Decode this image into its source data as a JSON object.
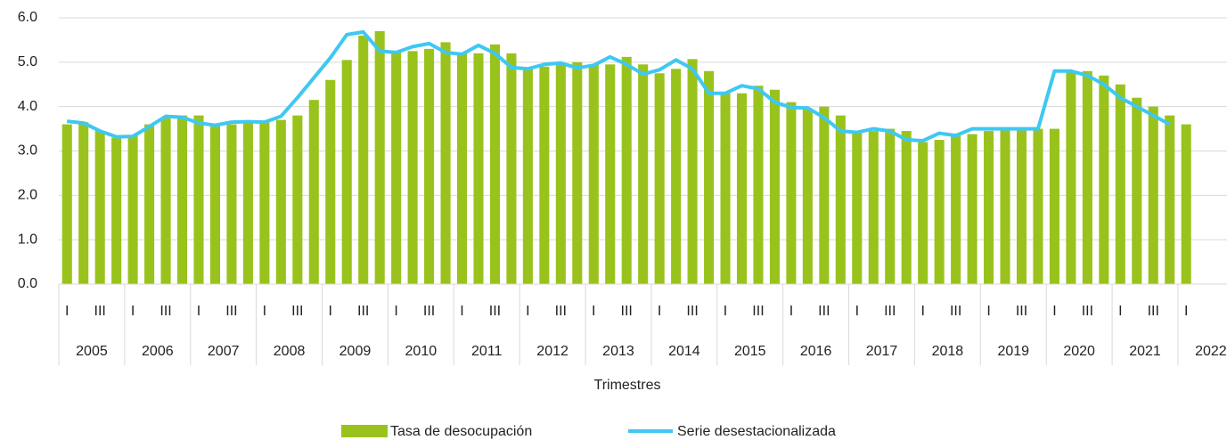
{
  "chart_data": {
    "type": "bar_line",
    "x_axis_title": "Trimestres",
    "categories": [
      "I",
      null,
      "III",
      null,
      "I",
      null,
      "III",
      null,
      "I",
      null,
      "III",
      null,
      "I",
      null,
      "III",
      null,
      "I",
      null,
      "III",
      null,
      "I",
      null,
      "III",
      null,
      "I",
      null,
      "III",
      null,
      "I",
      null,
      "III",
      null,
      "I",
      null,
      "III",
      null,
      "I",
      null,
      "III",
      null,
      "I",
      null,
      "III",
      null,
      "I",
      null,
      "III",
      null,
      "I",
      null,
      "III",
      null,
      "I",
      null,
      "III",
      null,
      "I",
      null,
      "III",
      null,
      "I",
      null,
      "III",
      null,
      "I",
      null,
      "III",
      null,
      "I"
    ],
    "years": [
      "2005",
      "2006",
      "2007",
      "2008",
      "2009",
      "2010",
      "2011",
      "2012",
      "2013",
      "2014",
      "2015",
      "2016",
      "2017",
      "2018",
      "2019",
      "2020",
      "2021",
      "2022"
    ],
    "series": [
      {
        "name": "Tasa de desocupación",
        "kind": "bar",
        "color": "#99c31c",
        "values": [
          3.6,
          3.65,
          3.45,
          3.3,
          3.35,
          3.6,
          3.75,
          3.8,
          3.8,
          3.6,
          3.6,
          3.65,
          3.65,
          3.7,
          3.8,
          4.15,
          4.6,
          5.05,
          5.6,
          5.7,
          5.25,
          5.25,
          5.3,
          5.45,
          5.2,
          5.2,
          5.4,
          5.2,
          4.85,
          4.9,
          4.95,
          5.0,
          4.95,
          4.95,
          5.12,
          4.95,
          4.75,
          4.85,
          5.07,
          4.8,
          4.3,
          4.3,
          4.47,
          4.38,
          4.1,
          3.95,
          4.0,
          3.8,
          3.4,
          3.45,
          3.5,
          3.45,
          3.2,
          3.25,
          3.35,
          3.38,
          3.45,
          3.5,
          3.5,
          3.5,
          3.5,
          4.8,
          4.8,
          4.7,
          4.5,
          4.2,
          4.0,
          3.8,
          3.6
        ]
      },
      {
        "name": "Serie desestacionalizada",
        "kind": "line",
        "color": "#3ec8f2",
        "values": [
          3.67,
          3.63,
          3.45,
          3.32,
          3.33,
          3.55,
          3.78,
          3.76,
          3.63,
          3.58,
          3.65,
          3.66,
          3.65,
          3.78,
          4.2,
          4.65,
          5.1,
          5.62,
          5.68,
          5.25,
          5.22,
          5.35,
          5.42,
          5.22,
          5.18,
          5.38,
          5.2,
          4.88,
          4.85,
          4.95,
          4.98,
          4.87,
          4.93,
          5.12,
          4.95,
          4.73,
          4.83,
          5.05,
          4.85,
          4.3,
          4.3,
          4.47,
          4.4,
          4.1,
          3.98,
          3.97,
          3.75,
          3.45,
          3.42,
          3.5,
          3.45,
          3.25,
          3.23,
          3.4,
          3.35,
          3.5,
          3.5,
          3.5,
          3.5,
          3.5,
          4.8,
          4.8,
          4.7,
          4.5,
          4.2,
          4.0,
          3.8,
          3.6,
          null
        ]
      }
    ],
    "ylim": [
      0,
      6
    ],
    "yticks": [
      {
        "value": 0,
        "label": "0.0"
      },
      {
        "value": 1,
        "label": "1.0"
      },
      {
        "value": 2,
        "label": "2.0"
      },
      {
        "value": 3,
        "label": "3.0"
      },
      {
        "value": 4,
        "label": "4.0"
      },
      {
        "value": 5,
        "label": "5.0"
      },
      {
        "value": 6,
        "label": "6.0"
      }
    ],
    "grid": true,
    "legend": "bottom"
  }
}
